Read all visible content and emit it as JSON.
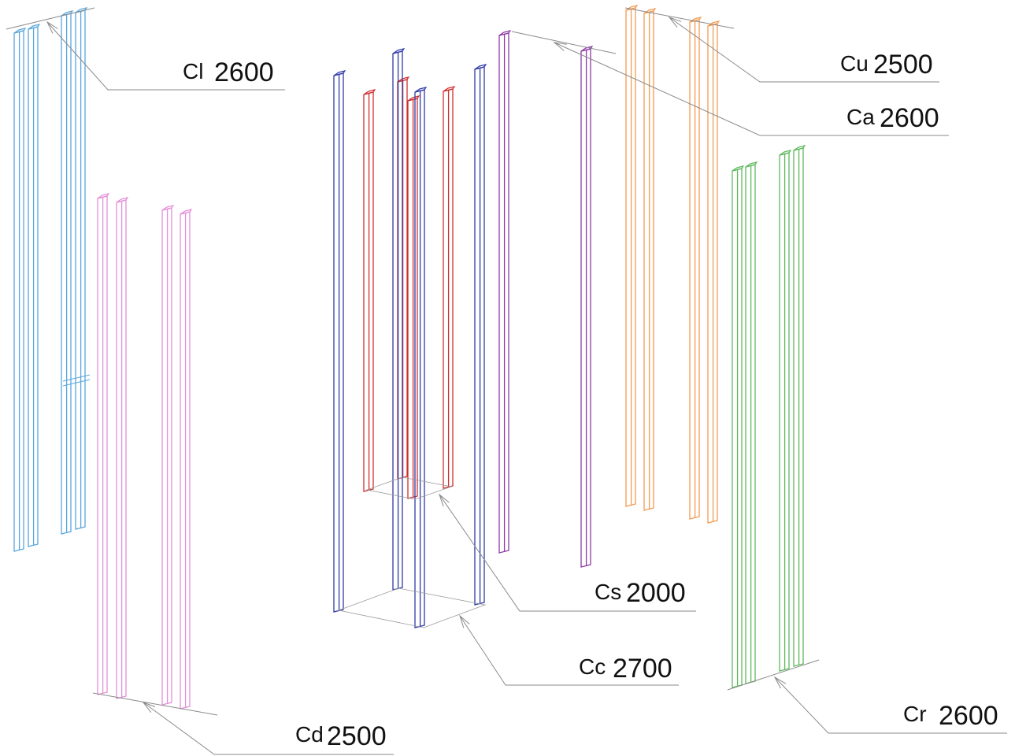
{
  "diagram": {
    "groups": [
      {
        "code": "Cl",
        "value": "2600",
        "color": "#5aa6dc"
      },
      {
        "code": "Cd",
        "value": "2500",
        "color": "#e58fd8"
      },
      {
        "code": "Cs",
        "value": "2000",
        "color": "#d12f2f"
      },
      {
        "code": "Cc",
        "value": "2700",
        "color": "#2f3aa8"
      },
      {
        "code": "Ca",
        "value": "2600",
        "color": "#8e3aa6"
      },
      {
        "code": "Cu",
        "value": "2500",
        "color": "#f39b52"
      },
      {
        "code": "Cr",
        "value": "2600",
        "color": "#5db85d"
      }
    ]
  }
}
